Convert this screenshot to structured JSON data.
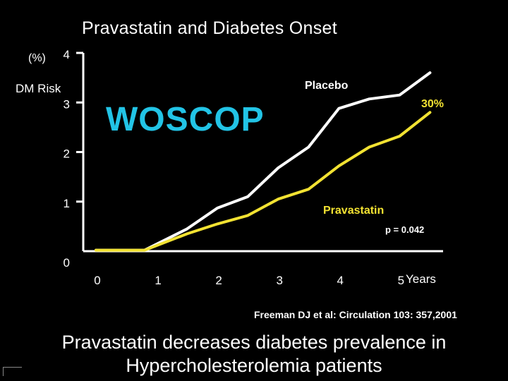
{
  "title": "Pravastatin and Diabetes Onset",
  "y_unit": "(%)",
  "y_axis_label": "DM Risk",
  "watermark": "WOSCOP",
  "citation": "Freeman DJ et al: Circulation 103: 357,2001",
  "conclusion": {
    "line1": "Pravastatin decreases diabetes prevalence in",
    "line2": "Hypercholesterolemia patients"
  },
  "colors": {
    "background": "#000000",
    "axis": "#ffffff",
    "placebo": "#ffffff",
    "pravastatin": "#f2e232",
    "watermark": "#22c4e6"
  },
  "chart_data": {
    "type": "line",
    "title": "Pravastatin and Diabetes Onset",
    "xlabel": "Years",
    "ylabel": "DM Risk (%)",
    "xlim": [
      0,
      5.6
    ],
    "ylim": [
      0,
      4
    ],
    "x_ticks": [
      "0",
      "1",
      "2",
      "3",
      "4",
      "5"
    ],
    "y_ticks": [
      "0",
      "1",
      "2",
      "3",
      "4"
    ],
    "series": [
      {
        "name": "Placebo",
        "color": "#ffffff",
        "x": [
          0,
          0.8,
          1.5,
          2.0,
          2.5,
          3.0,
          3.5,
          4.0,
          4.5,
          5.0,
          5.5
        ],
        "y": [
          0.02,
          0.02,
          0.45,
          0.87,
          1.1,
          1.68,
          2.1,
          2.88,
          3.07,
          3.15,
          3.6
        ]
      },
      {
        "name": "Pravastatin",
        "color": "#f2e232",
        "x": [
          0,
          0.8,
          1.5,
          2.0,
          2.5,
          3.0,
          3.5,
          4.0,
          4.5,
          5.0,
          5.5
        ],
        "y": [
          0.02,
          0.02,
          0.35,
          0.55,
          0.72,
          1.05,
          1.25,
          1.72,
          2.1,
          2.32,
          2.8
        ]
      }
    ],
    "annotations": {
      "placebo_label": "Placebo",
      "pravastatin_label": "Pravastatin",
      "reduction": "30%",
      "p_value": "p = 0.042"
    }
  }
}
